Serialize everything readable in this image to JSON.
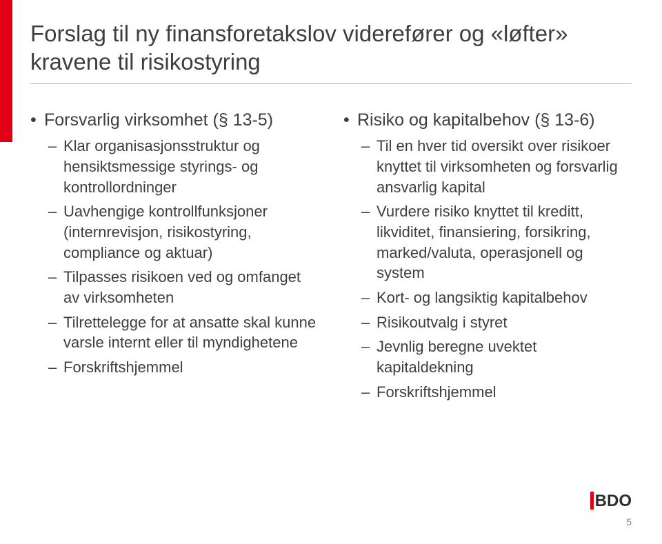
{
  "accent_color": "#e20016",
  "text_color": "#3e3e3e",
  "title": "Forslag til ny finansforetakslov viderefører og «løfter» kravene til risikostyring",
  "left_column": {
    "heading": "Forsvarlig virksomhet (§ 13-5)",
    "items": [
      "Klar organisasjonsstruktur og hensiktsmessige styrings- og kontrollordninger",
      "Uavhengige kontrollfunksjoner (internrevisjon, risikostyring, compliance og aktuar)",
      "Tilpasses risikoen ved og omfanget av virksomheten",
      "Tilrettelegge for at ansatte skal kunne varsle internt eller til myndighetene",
      "Forskriftshjemmel"
    ]
  },
  "right_column": {
    "heading": "Risiko og kapitalbehov (§ 13-6)",
    "items": [
      "Til en hver tid oversikt over risikoer knyttet til virksomheten og forsvarlig ansvarlig kapital",
      "Vurdere risiko knyttet til kreditt, likviditet, finansiering, forsikring, marked/valuta, operasjonell og system",
      "Kort- og langsiktig kapitalbehov",
      "Risikoutvalg i styret",
      "Jevnlig beregne uvektet kapitaldekning",
      "Forskriftshjemmel"
    ]
  },
  "logo_text": "BDO",
  "page_number": "5"
}
